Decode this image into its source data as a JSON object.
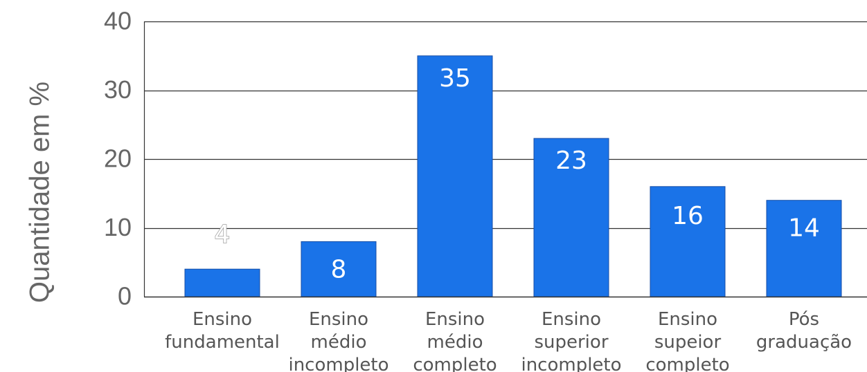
{
  "chart_data": {
    "type": "bar",
    "ylabel": "Quantidade em %",
    "xlabel": "",
    "ylim": [
      0,
      40
    ],
    "yticks": [
      0,
      10,
      20,
      30,
      40
    ],
    "grid": true,
    "categories": [
      [
        "Ensino",
        "fundamental"
      ],
      [
        "Ensino",
        "médio",
        "incompleto"
      ],
      [
        "Ensino",
        "médio",
        "completo"
      ],
      [
        "Ensino",
        "superior",
        "incompleto"
      ],
      [
        "Ensino",
        "supeior",
        "completo"
      ],
      [
        "Pós",
        "graduação"
      ]
    ],
    "values": [
      4,
      8,
      35,
      23,
      16,
      14
    ],
    "data_labels": [
      "4",
      "8",
      "35",
      "23",
      "16",
      "14"
    ],
    "colors": {
      "bar": "#1a73e8",
      "bar_edge": "#174ea6",
      "grid": "#333333",
      "axis_text": "#666666"
    }
  }
}
